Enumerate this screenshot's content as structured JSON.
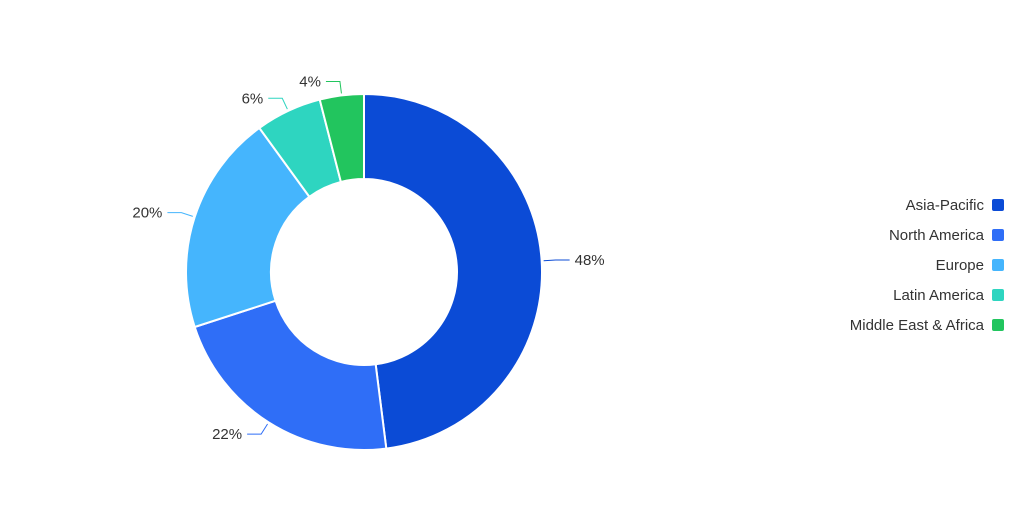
{
  "chart_data": {
    "type": "pie",
    "variant": "donut",
    "title": "",
    "categories": [
      "Asia-Pacific",
      "North America",
      "Europe",
      "Latin America",
      "Middle East & Africa"
    ],
    "values": [
      48,
      22,
      20,
      6,
      4
    ],
    "labels": [
      "48%",
      "22%",
      "20%",
      "6%",
      "4%"
    ],
    "colors": [
      "#0b4bd6",
      "#2f6ef7",
      "#45b5fd",
      "#2ed5c0",
      "#22c55e"
    ],
    "legend_position": "right"
  },
  "legend": {
    "items": [
      {
        "label": "Asia-Pacific",
        "color": "#0b4bd6"
      },
      {
        "label": "North America",
        "color": "#2f6ef7"
      },
      {
        "label": "Europe",
        "color": "#45b5fd"
      },
      {
        "label": "Latin America",
        "color": "#2ed5c0"
      },
      {
        "label": "Middle East & Africa",
        "color": "#22c55e"
      }
    ]
  }
}
